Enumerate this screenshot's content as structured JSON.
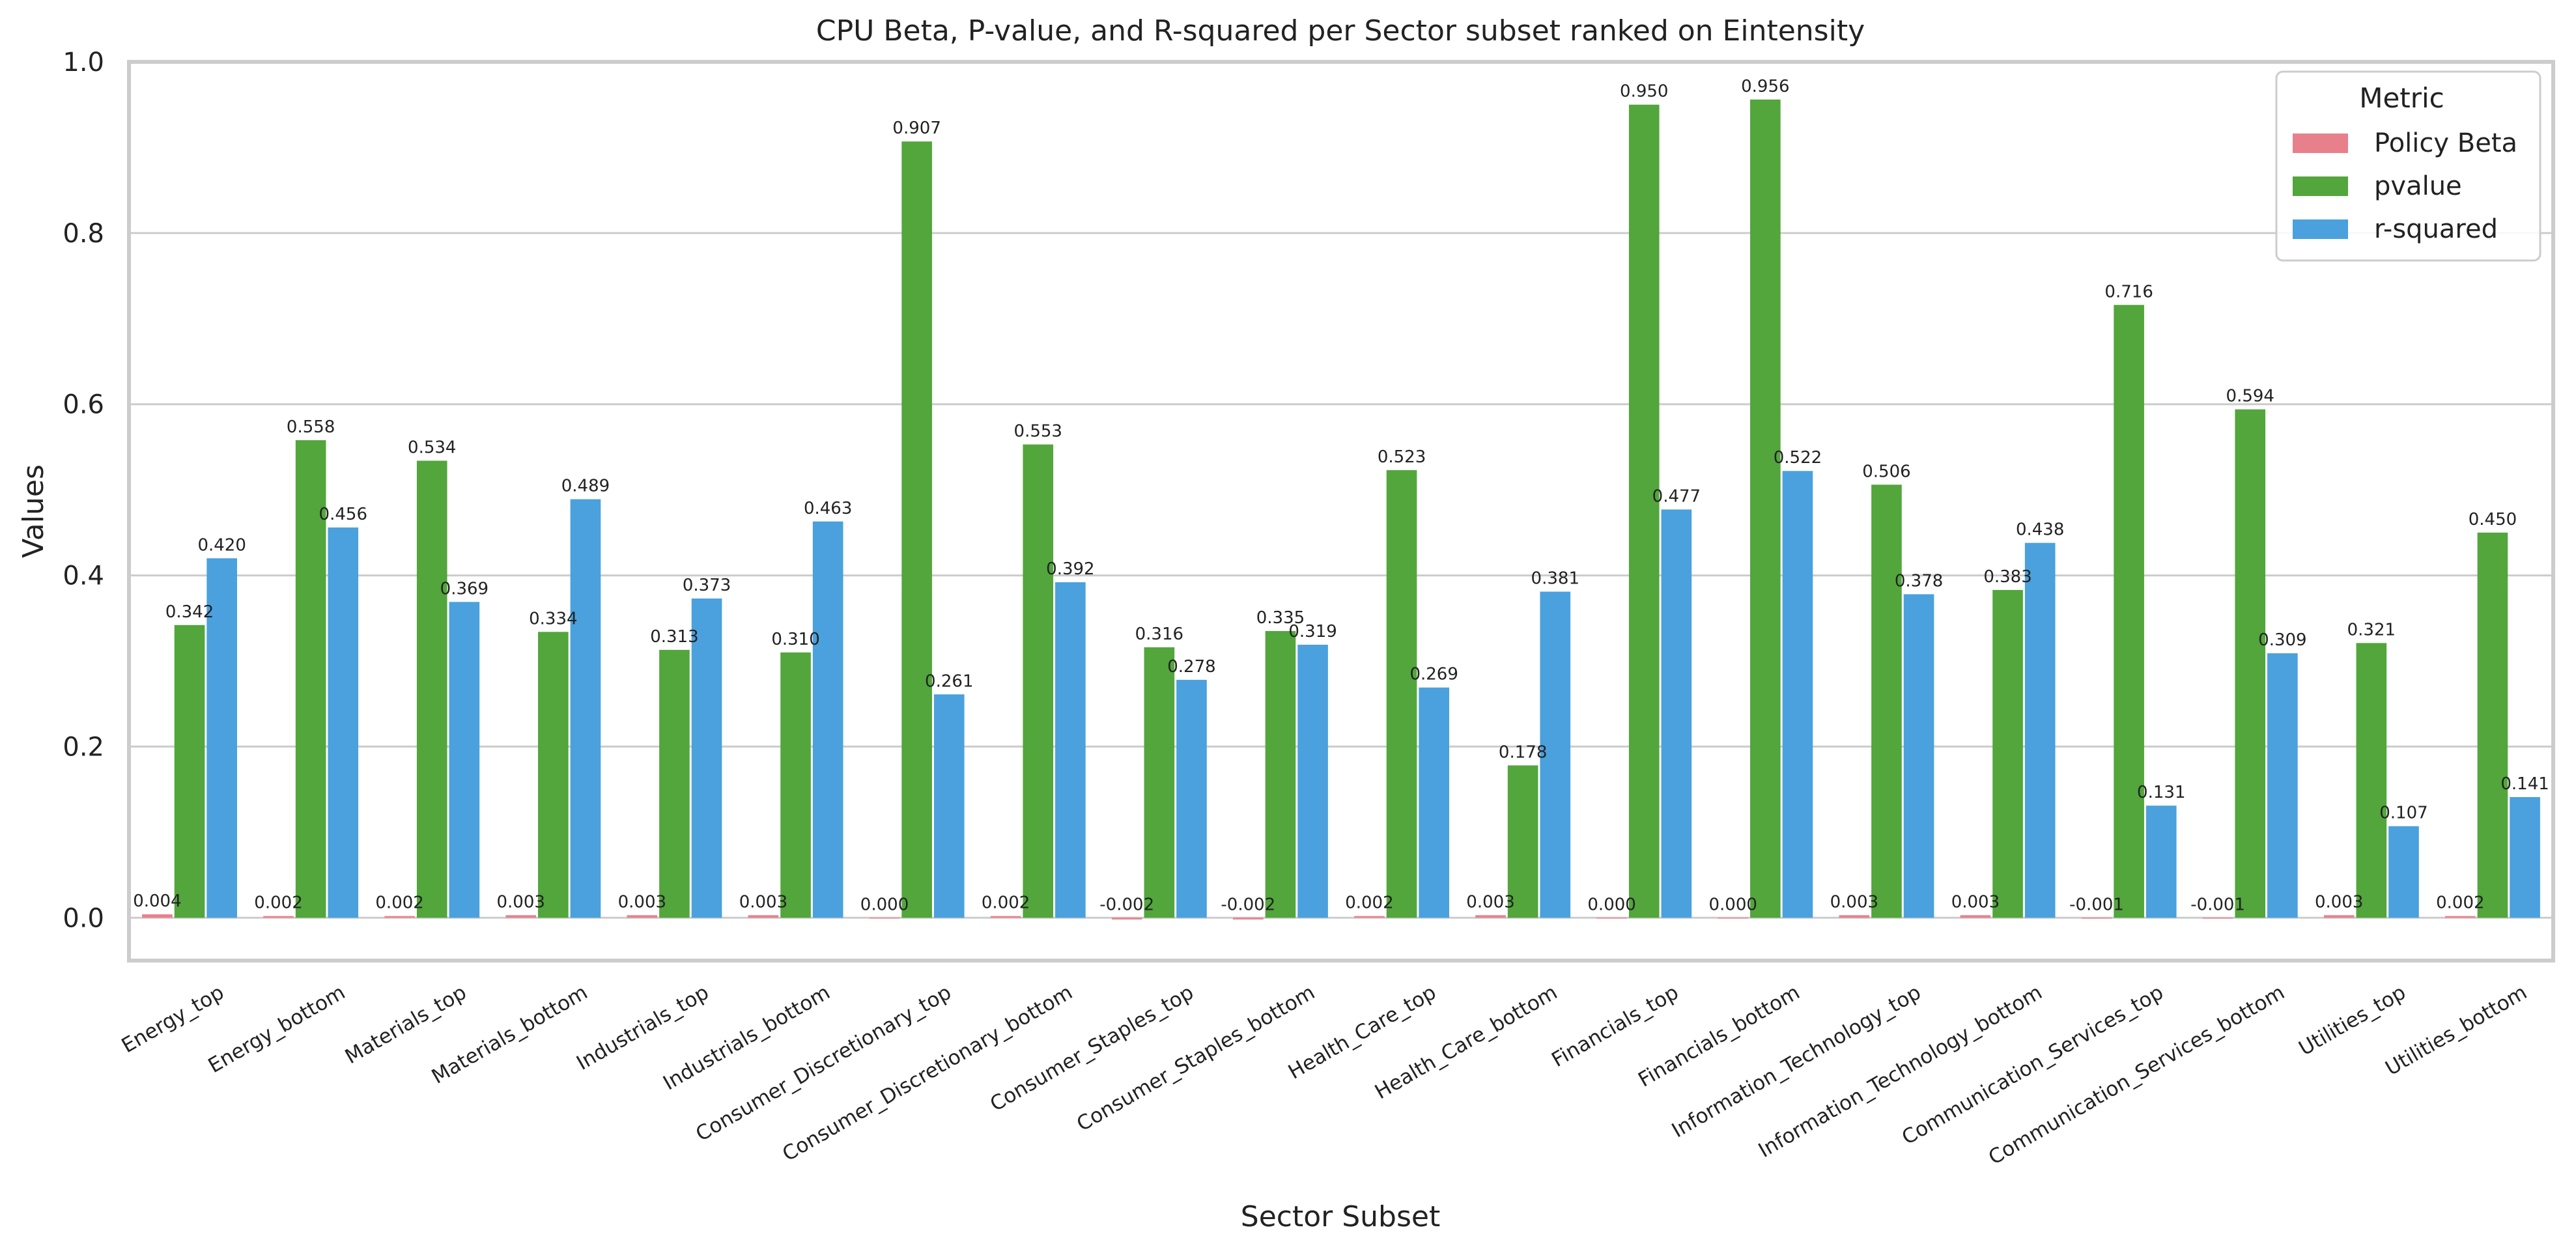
{
  "chart_data": {
    "type": "bar",
    "title": "CPU Beta, P-value, and R-squared per Sector subset ranked on Eintensity",
    "xlabel": "Sector Subset",
    "ylabel": "Values",
    "ylim": [
      -0.05,
      1.0
    ],
    "yticks": [
      "0.0",
      "0.2",
      "0.4",
      "0.6",
      "0.8",
      "1.0"
    ],
    "ytick_values": [
      0.0,
      0.2,
      0.4,
      0.6,
      0.8,
      1.0
    ],
    "grid": "horizontal",
    "legend": {
      "title": "Metric",
      "placement": "top-right"
    },
    "categories": [
      "Energy_top",
      "Energy_bottom",
      "Materials_top",
      "Materials_bottom",
      "Industrials_top",
      "Industrials_bottom",
      "Consumer_Discretionary_top",
      "Consumer_Discretionary_bottom",
      "Consumer_Staples_top",
      "Consumer_Staples_bottom",
      "Health_Care_top",
      "Health_Care_bottom",
      "Financials_top",
      "Financials_bottom",
      "Information_Technology_top",
      "Information_Technology_bottom",
      "Communication_Services_top",
      "Communication_Services_bottom",
      "Utilities_top",
      "Utilities_bottom"
    ],
    "series": [
      {
        "name": "Policy Beta",
        "color": "#e8808c",
        "values": [
          0.004,
          0.002,
          0.002,
          0.003,
          0.003,
          0.003,
          0.0,
          0.002,
          -0.002,
          -0.002,
          0.002,
          0.003,
          0.0,
          0.0,
          0.003,
          0.003,
          -0.001,
          -0.001,
          0.003,
          0.002
        ],
        "labels": [
          "0.004",
          "0.002",
          "0.002",
          "0.003",
          "0.003",
          "0.003",
          "0.000",
          "0.002",
          "-0.002",
          "-0.002",
          "0.002",
          "0.003",
          "0.000",
          "0.000",
          "0.003",
          "0.003",
          "-0.001",
          "-0.001",
          "0.003",
          "0.002"
        ]
      },
      {
        "name": "pvalue",
        "color": "#52a63c",
        "values": [
          0.342,
          0.558,
          0.534,
          0.334,
          0.313,
          0.31,
          0.907,
          0.553,
          0.316,
          0.335,
          0.523,
          0.178,
          0.95,
          0.956,
          0.506,
          0.383,
          0.716,
          0.594,
          0.321,
          0.45
        ],
        "labels": [
          "0.342",
          "0.558",
          "0.534",
          "0.334",
          "0.313",
          "0.310",
          "0.907",
          "0.553",
          "0.316",
          "0.335",
          "0.523",
          "0.178",
          "0.950",
          "0.956",
          "0.506",
          "0.383",
          "0.716",
          "0.594",
          "0.321",
          "0.450"
        ]
      },
      {
        "name": "r-squared",
        "color": "#4aa1dd",
        "values": [
          0.42,
          0.456,
          0.369,
          0.489,
          0.373,
          0.463,
          0.261,
          0.392,
          0.278,
          0.319,
          0.269,
          0.381,
          0.477,
          0.522,
          0.378,
          0.438,
          0.131,
          0.309,
          0.107,
          0.141
        ],
        "labels": [
          "0.420",
          "0.456",
          "0.369",
          "0.489",
          "0.373",
          "0.463",
          "0.261",
          "0.392",
          "0.278",
          "0.319",
          "0.269",
          "0.381",
          "0.477",
          "0.522",
          "0.378",
          "0.438",
          "0.131",
          "0.309",
          "0.107",
          "0.141"
        ]
      }
    ]
  }
}
